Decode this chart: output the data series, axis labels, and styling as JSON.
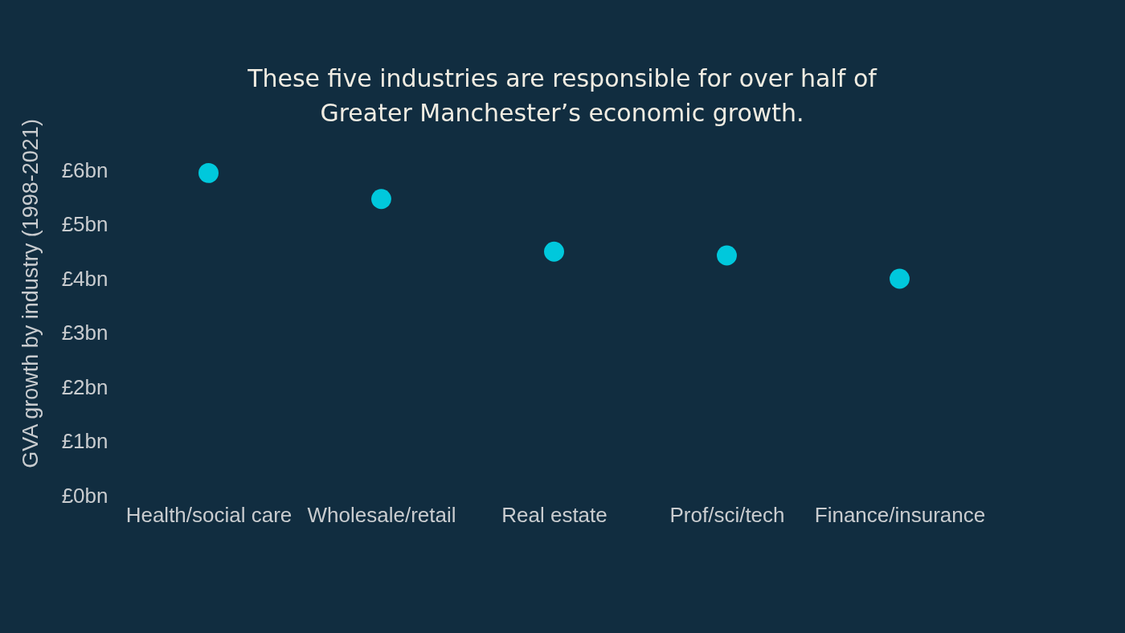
{
  "chart_data": {
    "type": "scatter",
    "title": "These five industries are responsible for over half of Greater Manchester’s economic growth.",
    "ylabel": "GVA growth by industry (1998-2021)",
    "categories": [
      "Health/social care",
      "Wholesale/retail",
      "Real estate",
      "Prof/sci/tech",
      "Finance/insurance"
    ],
    "series": [
      {
        "color": "#00c8dc",
        "values": [
          5.95,
          5.47,
          4.5,
          4.43,
          4.0
        ]
      }
    ],
    "ylim": [
      0,
      6
    ],
    "yticks": [
      {
        "value": 0,
        "label": "£0bn"
      },
      {
        "value": 1,
        "label": "£1bn"
      },
      {
        "value": 2,
        "label": "£2bn"
      },
      {
        "value": 3,
        "label": "£3bn"
      },
      {
        "value": 4,
        "label": "£4bn"
      },
      {
        "value": 5,
        "label": "£5bn"
      },
      {
        "value": 6,
        "label": "£6bn"
      }
    ],
    "grid": false,
    "marker": "circle"
  }
}
